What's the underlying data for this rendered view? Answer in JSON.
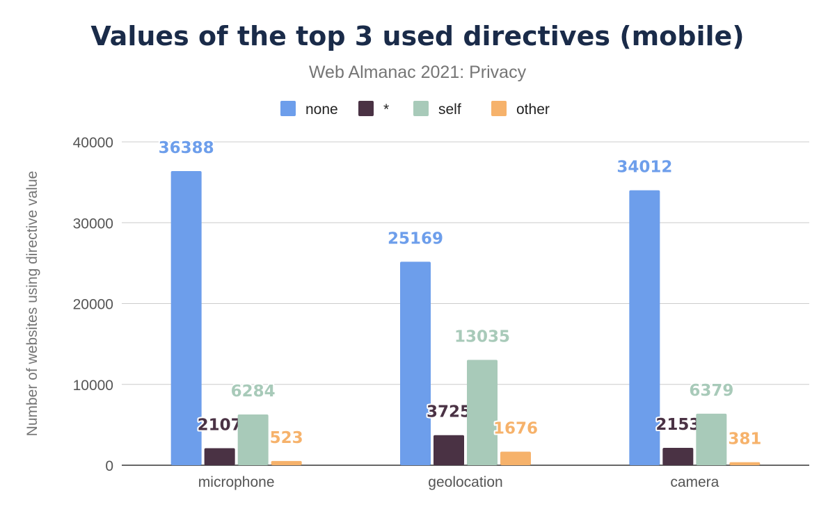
{
  "chart_data": {
    "type": "bar",
    "title": "Values of the top 3 used directives (mobile)",
    "subtitle": "Web Almanac 2021: Privacy",
    "ylabel": "Number of websites using directive value",
    "xlabel": "",
    "categories": [
      "microphone",
      "geolocation",
      "camera"
    ],
    "series": [
      {
        "name": "none",
        "values": [
          36388,
          25169,
          34012
        ],
        "color": "#6d9eeb"
      },
      {
        "name": "*",
        "values": [
          2107,
          3725,
          2153
        ],
        "color": "#4a3244"
      },
      {
        "name": "self",
        "values": [
          6284,
          13035,
          6379
        ],
        "color": "#a8cab9"
      },
      {
        "name": "other",
        "values": [
          523,
          1676,
          381
        ],
        "color": "#f6b26b"
      }
    ],
    "ylim": [
      0,
      40000
    ],
    "yticks": [
      0,
      10000,
      20000,
      30000,
      40000
    ],
    "grid": true,
    "legend": "top-center"
  }
}
